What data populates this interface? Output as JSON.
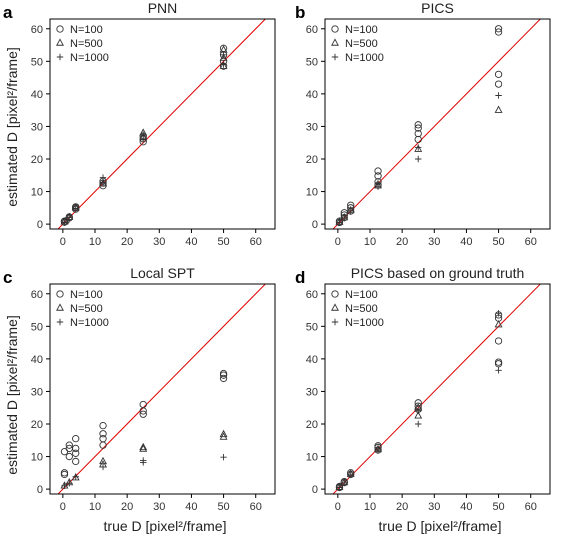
{
  "figure": {
    "ylabel": "estimated D [pixel²/frame]",
    "xlabel": "true D [pixel²/frame]"
  },
  "chart_data": [
    {
      "type": "scatter",
      "letter": "a",
      "title": "PNN",
      "xlim": [
        -4,
        66
      ],
      "ylim": [
        -1.5,
        63
      ],
      "xticks": [
        0,
        10,
        20,
        30,
        40,
        50,
        60
      ],
      "yticks": [
        0,
        10,
        20,
        30,
        40,
        50,
        60
      ],
      "reference_line": "y = x",
      "legend": "top-left",
      "series": [
        {
          "name": "N=100",
          "marker": "circle",
          "points": [
            [
              0.5,
              0.6
            ],
            [
              0.5,
              0.9
            ],
            [
              1,
              1.0
            ],
            [
              2,
              1.9
            ],
            [
              2,
              2.2
            ],
            [
              4,
              4.6
            ],
            [
              4,
              5.0
            ],
            [
              4,
              5.3
            ],
            [
              12.5,
              11.8
            ],
            [
              12.5,
              12.6
            ],
            [
              12.5,
              13.2
            ],
            [
              25,
              25.3
            ],
            [
              25,
              26.2
            ],
            [
              25,
              27.0
            ],
            [
              50,
              48.5
            ],
            [
              50,
              50.0
            ],
            [
              50,
              52.0
            ],
            [
              50,
              54.0
            ]
          ]
        },
        {
          "name": "N=500",
          "marker": "triangle",
          "points": [
            [
              0.5,
              0.7
            ],
            [
              2,
              2.1
            ],
            [
              4,
              5.0
            ],
            [
              12.5,
              12.4
            ],
            [
              25,
              26.6
            ],
            [
              25,
              28.0
            ],
            [
              50,
              48.5
            ],
            [
              50,
              51.0
            ],
            [
              50,
              53.5
            ]
          ]
        },
        {
          "name": "N=1000",
          "marker": "plus",
          "points": [
            [
              0.5,
              0.5
            ],
            [
              2,
              2.0
            ],
            [
              4,
              4.8
            ],
            [
              12.5,
              12.8
            ],
            [
              12.5,
              14.3
            ],
            [
              25,
              26.0
            ],
            [
              25,
              27.5
            ],
            [
              50,
              49.0
            ],
            [
              50,
              52.0
            ]
          ]
        }
      ]
    },
    {
      "type": "scatter",
      "letter": "b",
      "title": "PICS",
      "xlim": [
        -4,
        66
      ],
      "ylim": [
        -1.5,
        63
      ],
      "xticks": [
        0,
        10,
        20,
        30,
        40,
        50,
        60
      ],
      "yticks": [
        0,
        10,
        20,
        30,
        40,
        50,
        60
      ],
      "reference_line": "y = x",
      "legend": "top-left",
      "series": [
        {
          "name": "N=100",
          "marker": "circle",
          "points": [
            [
              0.5,
              0.5
            ],
            [
              0.5,
              0.9
            ],
            [
              2,
              2.0
            ],
            [
              2,
              2.8
            ],
            [
              2,
              3.5
            ],
            [
              4,
              4.0
            ],
            [
              4,
              5.0
            ],
            [
              4,
              5.8
            ],
            [
              12.5,
              12.0
            ],
            [
              12.5,
              13.0
            ],
            [
              12.5,
              14.8
            ],
            [
              12.5,
              16.3
            ],
            [
              25,
              26.0
            ],
            [
              25,
              27.8
            ],
            [
              25,
              29.5
            ],
            [
              25,
              30.5
            ],
            [
              50,
              43.0
            ],
            [
              50,
              46.0
            ],
            [
              50,
              59.0
            ],
            [
              50,
              60.0
            ]
          ]
        },
        {
          "name": "N=500",
          "marker": "triangle",
          "points": [
            [
              0.5,
              0.6
            ],
            [
              2,
              2.0
            ],
            [
              4,
              4.2
            ],
            [
              12.5,
              11.8
            ],
            [
              25,
              23.0
            ],
            [
              50,
              35.0
            ]
          ]
        },
        {
          "name": "N=1000",
          "marker": "plus",
          "points": [
            [
              0.5,
              0.5
            ],
            [
              2,
              1.8
            ],
            [
              4,
              4.0
            ],
            [
              12.5,
              11.5
            ],
            [
              12.5,
              12.5
            ],
            [
              25,
              20.0
            ],
            [
              25,
              23.5
            ],
            [
              50,
              39.5
            ]
          ]
        }
      ]
    },
    {
      "type": "scatter",
      "letter": "c",
      "title": "Local SPT",
      "xlim": [
        -4,
        66
      ],
      "ylim": [
        -1.5,
        63
      ],
      "xticks": [
        0,
        10,
        20,
        30,
        40,
        50,
        60
      ],
      "yticks": [
        0,
        10,
        20,
        30,
        40,
        50,
        60
      ],
      "reference_line": "y = x",
      "legend": "top-left",
      "series": [
        {
          "name": "N=100",
          "marker": "circle",
          "points": [
            [
              0.5,
              4.5
            ],
            [
              0.5,
              5.0
            ],
            [
              0.5,
              11.5
            ],
            [
              2,
              10.0
            ],
            [
              2,
              12.5
            ],
            [
              2,
              13.5
            ],
            [
              4,
              8.5
            ],
            [
              4,
              11.0
            ],
            [
              4,
              12.5
            ],
            [
              4,
              15.5
            ],
            [
              12.5,
              13.5
            ],
            [
              12.5,
              15.5
            ],
            [
              12.5,
              17.0
            ],
            [
              12.5,
              19.5
            ],
            [
              25,
              23.0
            ],
            [
              25,
              24.0
            ],
            [
              25,
              26.0
            ],
            [
              50,
              34.0
            ],
            [
              50,
              35.0
            ],
            [
              50,
              35.5
            ]
          ]
        },
        {
          "name": "N=500",
          "marker": "triangle",
          "points": [
            [
              0.5,
              1.0
            ],
            [
              2,
              2.0
            ],
            [
              4,
              3.5
            ],
            [
              12.5,
              7.5
            ],
            [
              12.5,
              8.5
            ],
            [
              25,
              12.3
            ],
            [
              25,
              12.8
            ],
            [
              50,
              16.0
            ],
            [
              50,
              16.8
            ]
          ]
        },
        {
          "name": "N=1000",
          "marker": "plus",
          "points": [
            [
              0.5,
              1.0
            ],
            [
              2,
              1.8
            ],
            [
              4,
              3.8
            ],
            [
              12.5,
              6.8
            ],
            [
              25,
              8.2
            ],
            [
              25,
              8.8
            ],
            [
              50,
              9.8
            ]
          ]
        }
      ]
    },
    {
      "type": "scatter",
      "letter": "d",
      "title": "PICS based on ground truth",
      "xlim": [
        -4,
        66
      ],
      "ylim": [
        -1.5,
        63
      ],
      "xticks": [
        0,
        10,
        20,
        30,
        40,
        50,
        60
      ],
      "yticks": [
        0,
        10,
        20,
        30,
        40,
        50,
        60
      ],
      "reference_line": "y = x",
      "legend": "top-left",
      "series": [
        {
          "name": "N=100",
          "marker": "circle",
          "points": [
            [
              0.5,
              0.5
            ],
            [
              0.5,
              0.8
            ],
            [
              2,
              2.0
            ],
            [
              2,
              2.3
            ],
            [
              4,
              4.5
            ],
            [
              4,
              5.0
            ],
            [
              12.5,
              12.0
            ],
            [
              12.5,
              12.8
            ],
            [
              12.5,
              13.3
            ],
            [
              25,
              24.5
            ],
            [
              25,
              25.5
            ],
            [
              25,
              26.5
            ],
            [
              50,
              38.5
            ],
            [
              50,
              39.0
            ],
            [
              50,
              45.5
            ],
            [
              50,
              52.5
            ],
            [
              50,
              53.5
            ]
          ]
        },
        {
          "name": "N=500",
          "marker": "triangle",
          "points": [
            [
              0.5,
              0.6
            ],
            [
              2,
              2.0
            ],
            [
              4,
              4.6
            ],
            [
              12.5,
              12.2
            ],
            [
              25,
              22.5
            ],
            [
              25,
              25.0
            ],
            [
              50,
              50.5
            ]
          ]
        },
        {
          "name": "N=1000",
          "marker": "plus",
          "points": [
            [
              0.5,
              0.5
            ],
            [
              2,
              1.9
            ],
            [
              4,
              4.4
            ],
            [
              12.5,
              12.0
            ],
            [
              25,
              20.0
            ],
            [
              25,
              24.0
            ],
            [
              50,
              36.5
            ],
            [
              50,
              54.0
            ]
          ]
        }
      ]
    }
  ]
}
